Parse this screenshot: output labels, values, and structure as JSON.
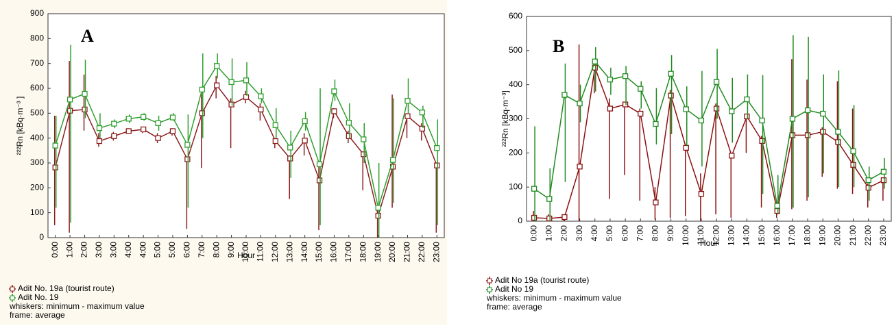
{
  "chart_data": [
    {
      "type": "line",
      "panel_label": "A",
      "ylabel": "²²²Rn [kBq·m⁻³ ]",
      "xlabel": "Hour",
      "categories": [
        "0:00",
        "1:00",
        "2:00",
        "3:00",
        "3:00",
        "4:00",
        "4:00",
        "5:00",
        "5:00",
        "6:00",
        "7:00",
        "8:00",
        "9:00",
        "10:00",
        "11:00",
        "12:00",
        "13:00",
        "14:00",
        "15:00",
        "16:00",
        "17:00",
        "18:00",
        "19:00",
        "20:00",
        "21:00",
        "22:00",
        "23:00"
      ],
      "ylim": [
        0,
        900
      ],
      "yticks": [
        0,
        100,
        200,
        300,
        400,
        500,
        600,
        700,
        800,
        900
      ],
      "series": [
        {
          "name": "Adit No. 19a (tourist route)",
          "color": "#8b1e1e",
          "values": [
            282,
            510,
            515,
            388,
            408,
            428,
            435,
            400,
            428,
            315,
            500,
            612,
            535,
            565,
            515,
            388,
            318,
            390,
            230,
            508,
            408,
            335,
            88,
            285,
            488,
            438,
            290
          ],
          "min": [
            50,
            20,
            430,
            365,
            390,
            420,
            420,
            380,
            410,
            35,
            280,
            560,
            360,
            540,
            470,
            360,
            155,
            330,
            30,
            480,
            380,
            190,
            0,
            120,
            400,
            390,
            20
          ],
          "max": [
            490,
            710,
            655,
            420,
            425,
            440,
            445,
            420,
            440,
            325,
            600,
            650,
            560,
            590,
            540,
            400,
            330,
            420,
            300,
            520,
            430,
            345,
            110,
            575,
            500,
            460,
            300
          ]
        },
        {
          "name": "Adit No. 19",
          "color": "#2f9e2f",
          "values": [
            370,
            555,
            578,
            440,
            458,
            478,
            485,
            460,
            483,
            373,
            595,
            690,
            625,
            632,
            568,
            452,
            362,
            468,
            295,
            588,
            462,
            395,
            120,
            312,
            550,
            503,
            360
          ],
          "min": [
            120,
            60,
            480,
            400,
            440,
            460,
            470,
            430,
            470,
            120,
            400,
            640,
            530,
            570,
            540,
            400,
            240,
            430,
            50,
            550,
            400,
            300,
            0,
            140,
            500,
            440,
            50
          ],
          "max": [
            490,
            775,
            715,
            500,
            475,
            495,
            500,
            490,
            500,
            495,
            740,
            740,
            720,
            705,
            600,
            520,
            430,
            505,
            600,
            635,
            540,
            460,
            300,
            560,
            640,
            530,
            475
          ]
        }
      ],
      "notes": [
        "whiskers: minimum - maximum value",
        "frame: average"
      ]
    },
    {
      "type": "line",
      "panel_label": "B",
      "ylabel": "²²²Rn [kBq·m⁻³]",
      "xlabel": "Hour",
      "categories": [
        "0:00",
        "1:00",
        "2:00",
        "3:00",
        "4:00",
        "5:00",
        "6:00",
        "7:00",
        "8:00",
        "9:00",
        "10:00",
        "11:00",
        "12:00",
        "13:00",
        "14:00",
        "15:00",
        "16:00",
        "17:00",
        "18:00",
        "19:00",
        "20:00",
        "21:00",
        "22:00",
        "23:00"
      ],
      "ylim": [
        0,
        600
      ],
      "yticks": [
        0,
        100,
        200,
        300,
        400,
        500,
        600
      ],
      "series": [
        {
          "name": "Adit No 19a (tourist route)",
          "color": "#8b1010",
          "values": [
            10,
            8,
            12,
            160,
            450,
            330,
            342,
            315,
            55,
            368,
            215,
            80,
            330,
            192,
            307,
            235,
            30,
            252,
            252,
            262,
            232,
            165,
            98,
            120
          ],
          "min": [
            0,
            0,
            0,
            0,
            375,
            65,
            135,
            60,
            5,
            10,
            15,
            0,
            20,
            10,
            200,
            40,
            10,
            35,
            60,
            130,
            95,
            80,
            40,
            60
          ],
          "max": [
            30,
            20,
            20,
            518,
            460,
            360,
            350,
            330,
            100,
            385,
            225,
            140,
            345,
            200,
            315,
            250,
            60,
            475,
            415,
            275,
            410,
            330,
            110,
            125
          ]
        },
        {
          "name": "Adit No 19",
          "color": "#1f8a1f",
          "values": [
            95,
            65,
            370,
            345,
            468,
            415,
            425,
            388,
            285,
            432,
            328,
            295,
            408,
            322,
            357,
            295,
            45,
            300,
            325,
            315,
            262,
            205,
            120,
            145
          ],
          "min": [
            0,
            0,
            115,
            290,
            380,
            370,
            340,
            330,
            225,
            255,
            220,
            160,
            300,
            230,
            300,
            80,
            20,
            40,
            70,
            140,
            100,
            100,
            60,
            95
          ],
          "max": [
            278,
            155,
            462,
            400,
            510,
            450,
            455,
            410,
            390,
            487,
            395,
            440,
            505,
            420,
            430,
            428,
            135,
            545,
            540,
            430,
            442,
            340,
            160,
            185
          ]
        }
      ],
      "notes": [
        "whiskers: minimum - maximum value",
        "frame: average"
      ]
    }
  ]
}
